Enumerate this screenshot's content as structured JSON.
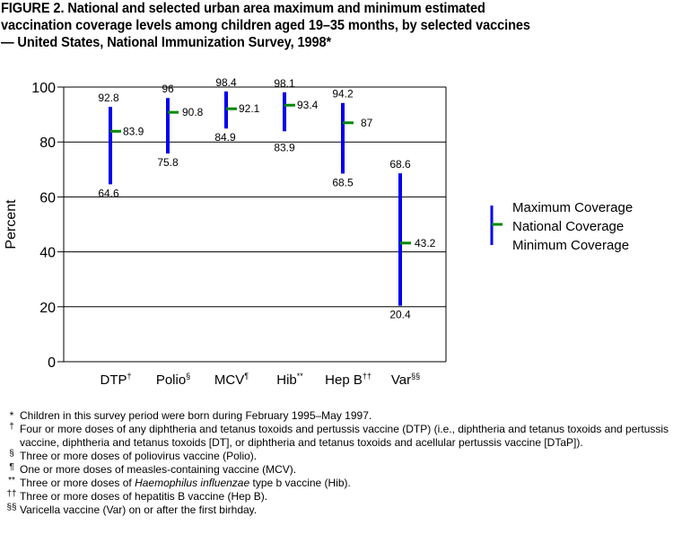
{
  "title": {
    "lines": [
      "FIGURE 2.  National and selected urban area maximum and minimum estimated",
      "vaccination coverage levels among children aged 19–35 months, by selected vaccines",
      "— United States, National Immunization Survey, 1998*"
    ]
  },
  "colors": {
    "range_line": "#0000ee",
    "national_tick": "#008800",
    "grid": "#000000",
    "background": "#ffffff"
  },
  "chart_data": {
    "type": "range",
    "title": "National and selected urban area maximum and minimum estimated vaccination coverage levels among children aged 19–35 months, by selected vaccines — United States, National Immunization Survey, 1998*",
    "xlabel": "",
    "ylabel": "Percent",
    "ylim": [
      0,
      100
    ],
    "yticks": [
      0,
      20,
      40,
      60,
      80,
      100
    ],
    "grid": true,
    "legend_position": "right",
    "categories": [
      "DTP",
      "Polio",
      "MCV",
      "Hib",
      "Hep B",
      "Var"
    ],
    "category_marks": [
      "†",
      "§",
      "¶",
      "**",
      "††",
      "§§"
    ],
    "series": [
      {
        "name": "Maximum Coverage",
        "values": [
          92.8,
          96,
          98.4,
          98.1,
          94.2,
          68.6
        ]
      },
      {
        "name": "National Coverage",
        "values": [
          83.9,
          90.8,
          92.1,
          93.4,
          87,
          43.2
        ]
      },
      {
        "name": "Minimum Coverage",
        "values": [
          64.6,
          75.8,
          84.9,
          83.9,
          68.5,
          20.4
        ]
      }
    ],
    "value_labels": {
      "max": [
        "92.8",
        "96",
        "98.4",
        "98.1",
        "94.2",
        "68.6"
      ],
      "national": [
        "83.9",
        "90.8",
        "92.1",
        "93.4",
        "87",
        "43.2"
      ],
      "min": [
        "64.6",
        "75.8",
        "84.9",
        "83.9",
        "68.5",
        "20.4"
      ]
    }
  },
  "legend": {
    "items": [
      "Maximum Coverage",
      "National Coverage",
      "Minimum Coverage"
    ]
  },
  "footnotes": [
    {
      "mark": "*",
      "text": "Children in this survey period were born during February 1995–May 1997."
    },
    {
      "mark": "†",
      "text": "Four or more doses of any diphtheria and tetanus toxoids and pertussis vaccine (DTP) (i.e., diphtheria and tetanus toxoids and pertussis vaccine, diphtheria and tetanus toxoids [DT], or diphtheria and tetanus toxoids and acellular pertussis vaccine [DTaP])."
    },
    {
      "mark": "§",
      "text": "Three or more doses of poliovirus vaccine (Polio)."
    },
    {
      "mark": "¶",
      "text": "One or more doses of measles-containing vaccine (MCV)."
    },
    {
      "mark": "**",
      "text_before": "Three or more doses of ",
      "text_italic": "Haemophilus influenzae",
      "text_after": " type b vaccine (Hib)."
    },
    {
      "mark": "††",
      "text": "Three or more doses of hepatitis B vaccine (Hep B)."
    },
    {
      "mark": "§§",
      "text": "Varicella vaccine (Var) on or after the first birhday."
    }
  ]
}
